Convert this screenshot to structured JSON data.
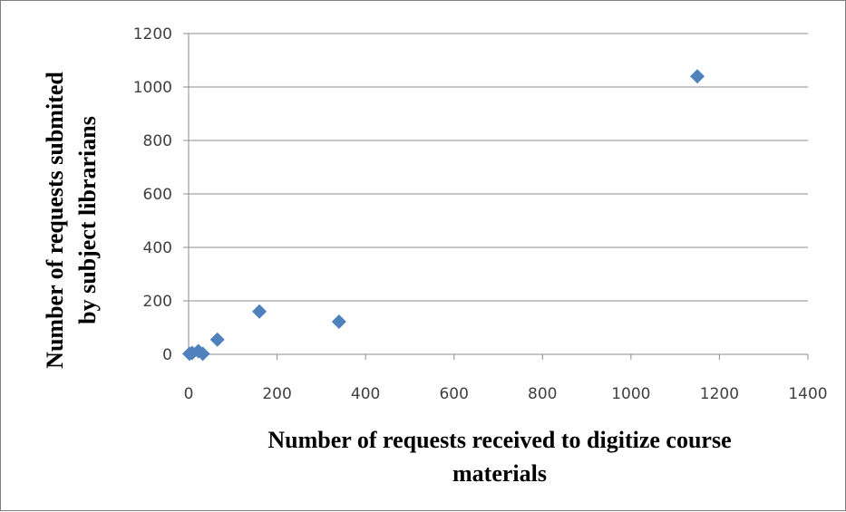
{
  "chart_data": {
    "type": "scatter",
    "xlabel_lines": [
      "Number of requests received to digitize course",
      "materials"
    ],
    "ylabel_lines": [
      "Number of requests submited",
      "by subject librarians"
    ],
    "xlim": [
      0,
      1400
    ],
    "ylim": [
      0,
      1200
    ],
    "x_ticks": [
      "0",
      "200",
      "400",
      "600",
      "800",
      "1000",
      "1200",
      "1400"
    ],
    "y_ticks": [
      "0",
      "200",
      "400",
      "600",
      "800",
      "1000",
      "1200"
    ],
    "grid": "horizontal",
    "marker": "diamond",
    "colors": {
      "marker": "#4F81BD",
      "grid": "#8c8c8c",
      "tick_text": "#404040"
    },
    "points": [
      {
        "x": 2,
        "y": 2
      },
      {
        "x": 8,
        "y": 5
      },
      {
        "x": 22,
        "y": 12
      },
      {
        "x": 32,
        "y": 2
      },
      {
        "x": 65,
        "y": 55
      },
      {
        "x": 160,
        "y": 160
      },
      {
        "x": 340,
        "y": 122
      },
      {
        "x": 1150,
        "y": 1040
      }
    ]
  }
}
